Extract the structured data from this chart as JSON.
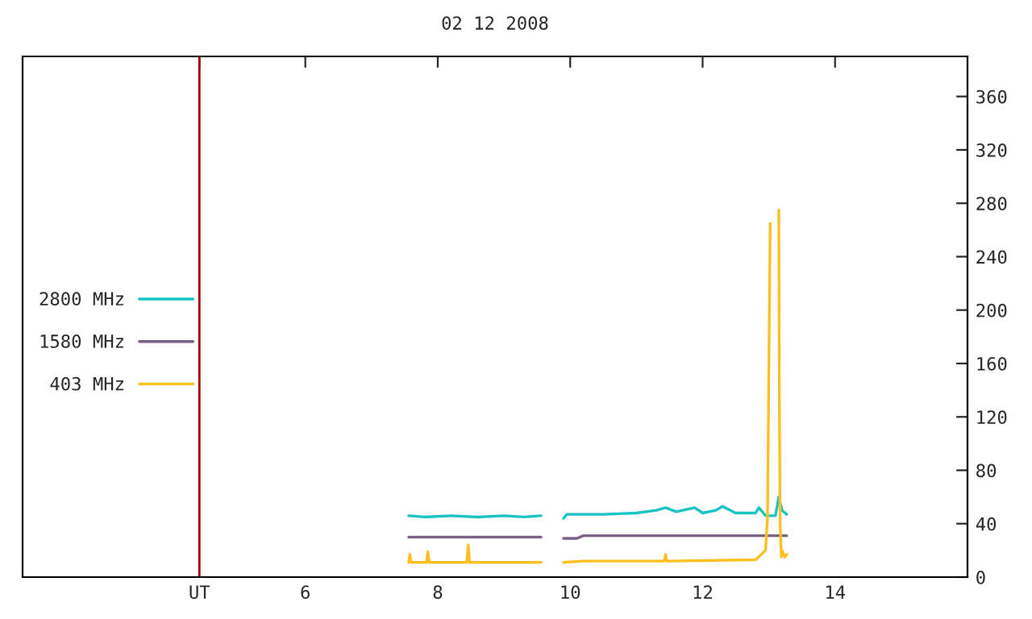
{
  "chart_data": {
    "type": "line",
    "title": "02 12 2008",
    "xlim": [
      1.73,
      16
    ],
    "xticks": [
      {
        "value": 4.4,
        "label": "UT"
      },
      6,
      8,
      10,
      12,
      14
    ],
    "ylim": [
      0,
      390
    ],
    "yticks": [
      0,
      40,
      80,
      120,
      160,
      200,
      240,
      280,
      320,
      360
    ],
    "grid": false,
    "legend": "left",
    "line_style": "solid",
    "marker": "none",
    "ref_lines": [
      {
        "axis": "x",
        "value": 4.4,
        "color": "#a00000"
      }
    ],
    "series": [
      {
        "name": "2800 MHz",
        "color": "#19c3c3",
        "x": [
          7.56,
          7.8,
          8.2,
          8.6,
          9.0,
          9.3,
          9.56,
          9.75,
          9.9,
          9.95,
          10.5,
          11.0,
          11.3,
          11.44,
          11.6,
          11.88,
          12.0,
          12.2,
          12.3,
          12.5,
          12.8,
          12.85,
          12.95,
          13.1,
          13.15,
          13.2,
          13.27
        ],
        "values": [
          46,
          45,
          46,
          45,
          46,
          45,
          46,
          null,
          44,
          47,
          47,
          48,
          50,
          52,
          49,
          52,
          48,
          50,
          53,
          48,
          48,
          52,
          46,
          46,
          60,
          50,
          47
        ]
      },
      {
        "name": "1580 MHz",
        "color": "#7b5f85",
        "x": [
          7.56,
          8.5,
          9.56,
          9.75,
          9.9,
          10.1,
          10.2,
          11.5,
          12.5,
          13.27
        ],
        "values": [
          30,
          30,
          30,
          null,
          29,
          29,
          31,
          31,
          31,
          31
        ]
      },
      {
        "name": "403 MHz",
        "color": "#ffbf1f",
        "x": [
          7.56,
          7.58,
          7.6,
          7.65,
          7.83,
          7.85,
          7.87,
          8.44,
          8.46,
          8.48,
          9.56,
          9.75,
          9.9,
          10.2,
          11.42,
          11.44,
          11.46,
          11.5,
          12.8,
          12.95,
          12.98,
          13.02,
          13.05,
          13.1,
          13.15,
          13.16,
          13.17,
          13.19,
          13.2,
          13.24,
          13.27
        ],
        "values": [
          11,
          17,
          11,
          11,
          11,
          19,
          11,
          11,
          24,
          11,
          11,
          null,
          11,
          12,
          12,
          17,
          12,
          12,
          13,
          20,
          45,
          265,
          null,
          null,
          275,
          125,
          40,
          15,
          20,
          15,
          17
        ]
      }
    ]
  }
}
